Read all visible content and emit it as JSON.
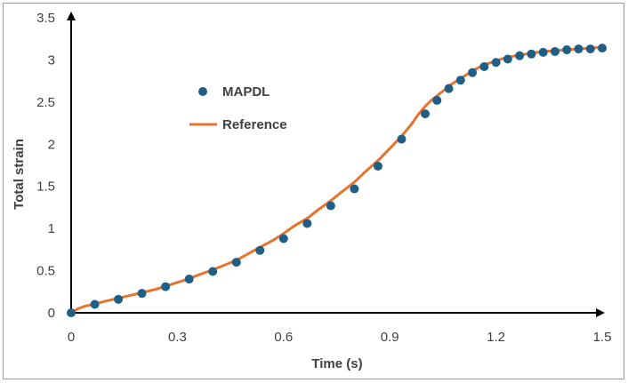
{
  "chart_data": {
    "type": "scatter+line",
    "title": "",
    "xlabel": "Time (s)",
    "ylabel": "Total strain",
    "xlim": [
      0,
      1.5
    ],
    "ylim": [
      0,
      3.5
    ],
    "xticks": [
      0,
      0.3,
      0.6,
      0.9,
      1.2,
      1.5
    ],
    "xtick_labels": [
      "0",
      "0.3",
      "0.6",
      "0.9",
      "1.2",
      "1.5"
    ],
    "yticks": [
      0,
      0.5,
      1,
      1.5,
      2,
      2.5,
      3,
      3.5
    ],
    "ytick_labels": [
      "0",
      "0.5",
      "1",
      "1.5",
      "2",
      "2.5",
      "3",
      "3.5"
    ],
    "grid": false,
    "legend_position": "upper-left-inside",
    "series": [
      {
        "name": "MAPDL",
        "kind": "markers",
        "color": "#1f5f86",
        "x": [
          0,
          0.0667,
          0.1333,
          0.2,
          0.2667,
          0.3333,
          0.4,
          0.4667,
          0.5333,
          0.6,
          0.6667,
          0.7333,
          0.8,
          0.8667,
          0.9333,
          1.0,
          1.0333,
          1.0667,
          1.1,
          1.1333,
          1.1667,
          1.2,
          1.2333,
          1.2667,
          1.3,
          1.3333,
          1.3667,
          1.4,
          1.4333,
          1.4667,
          1.5
        ],
        "y": [
          0,
          0.1,
          0.16,
          0.23,
          0.31,
          0.4,
          0.49,
          0.6,
          0.74,
          0.88,
          1.06,
          1.27,
          1.47,
          1.74,
          2.06,
          2.36,
          2.52,
          2.66,
          2.76,
          2.85,
          2.92,
          2.97,
          3.01,
          3.05,
          3.07,
          3.09,
          3.1,
          3.12,
          3.13,
          3.13,
          3.14
        ]
      },
      {
        "name": "Reference",
        "kind": "line",
        "color": "#e8732c",
        "x": [
          0,
          0.02,
          0.04,
          0.07,
          0.1,
          0.13,
          0.16,
          0.2,
          0.24,
          0.27,
          0.3,
          0.33,
          0.36,
          0.4,
          0.43,
          0.47,
          0.5,
          0.53,
          0.57,
          0.6,
          0.63,
          0.67,
          0.7,
          0.73,
          0.76,
          0.8,
          0.83,
          0.87,
          0.9,
          0.93,
          0.96,
          0.98,
          1.0,
          1.02,
          1.05,
          1.07,
          1.1,
          1.13,
          1.16,
          1.2,
          1.23,
          1.27,
          1.3,
          1.33,
          1.37,
          1.4,
          1.43,
          1.47,
          1.5
        ],
        "y": [
          0,
          0.05,
          0.08,
          0.11,
          0.14,
          0.17,
          0.2,
          0.24,
          0.28,
          0.32,
          0.36,
          0.4,
          0.45,
          0.51,
          0.56,
          0.63,
          0.7,
          0.77,
          0.86,
          0.94,
          1.03,
          1.13,
          1.23,
          1.32,
          1.42,
          1.55,
          1.67,
          1.82,
          1.95,
          2.08,
          2.23,
          2.35,
          2.45,
          2.53,
          2.63,
          2.7,
          2.78,
          2.86,
          2.93,
          2.99,
          3.03,
          3.06,
          3.08,
          3.1,
          3.11,
          3.12,
          3.13,
          3.14,
          3.15
        ]
      }
    ]
  }
}
